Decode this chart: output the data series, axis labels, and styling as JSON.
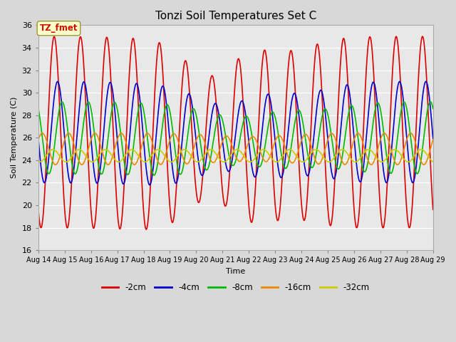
{
  "title": "Tonzi Soil Temperatures Set C",
  "xlabel": "Time",
  "ylabel": "Soil Temperature (C)",
  "ylim": [
    16,
    36
  ],
  "xlim": [
    0,
    15
  ],
  "yticks": [
    16,
    18,
    20,
    22,
    24,
    26,
    28,
    30,
    32,
    34,
    36
  ],
  "xtick_labels": [
    "Aug 14",
    "Aug 15",
    "Aug 16",
    "Aug 17",
    "Aug 18",
    "Aug 19",
    "Aug 20",
    "Aug 21",
    "Aug 22",
    "Aug 23",
    "Aug 24",
    "Aug 25",
    "Aug 26",
    "Aug 27",
    "Aug 28",
    "Aug 29"
  ],
  "series": [
    {
      "label": "-2cm",
      "color": "#dd0000"
    },
    {
      "label": "-4cm",
      "color": "#0000cc"
    },
    {
      "label": "-8cm",
      "color": "#00bb00"
    },
    {
      "label": "-16cm",
      "color": "#ee8800"
    },
    {
      "label": "-32cm",
      "color": "#cccc00"
    }
  ],
  "annotation_text": "TZ_fmet",
  "bg_color": "#e8e8e8",
  "fig_bg_color": "#d8d8d8",
  "linewidth": 1.2
}
